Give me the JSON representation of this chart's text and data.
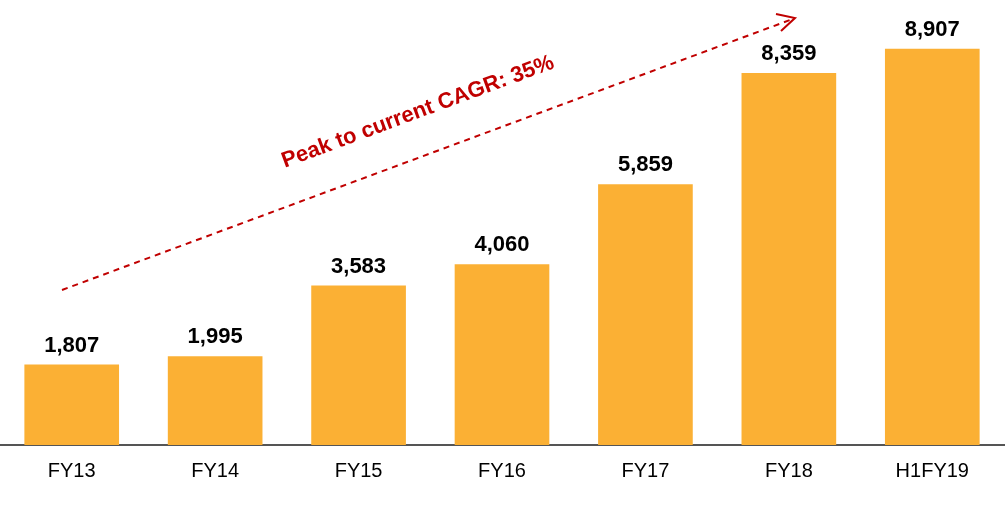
{
  "chart_data": {
    "type": "bar",
    "categories": [
      "FY13",
      "FY14",
      "FY15",
      "FY16",
      "FY17",
      "FY18",
      "H1FY19"
    ],
    "values": [
      1807,
      1995,
      3583,
      4060,
      5859,
      8359,
      8907
    ],
    "value_labels": [
      "1,807",
      "1,995",
      "3,583",
      "4,060",
      "5,859",
      "8,359",
      "8,907"
    ],
    "color": "#fbb034",
    "grid": false,
    "legend": false,
    "annotations": [
      "Peak to current CAGR: 35%"
    ]
  }
}
